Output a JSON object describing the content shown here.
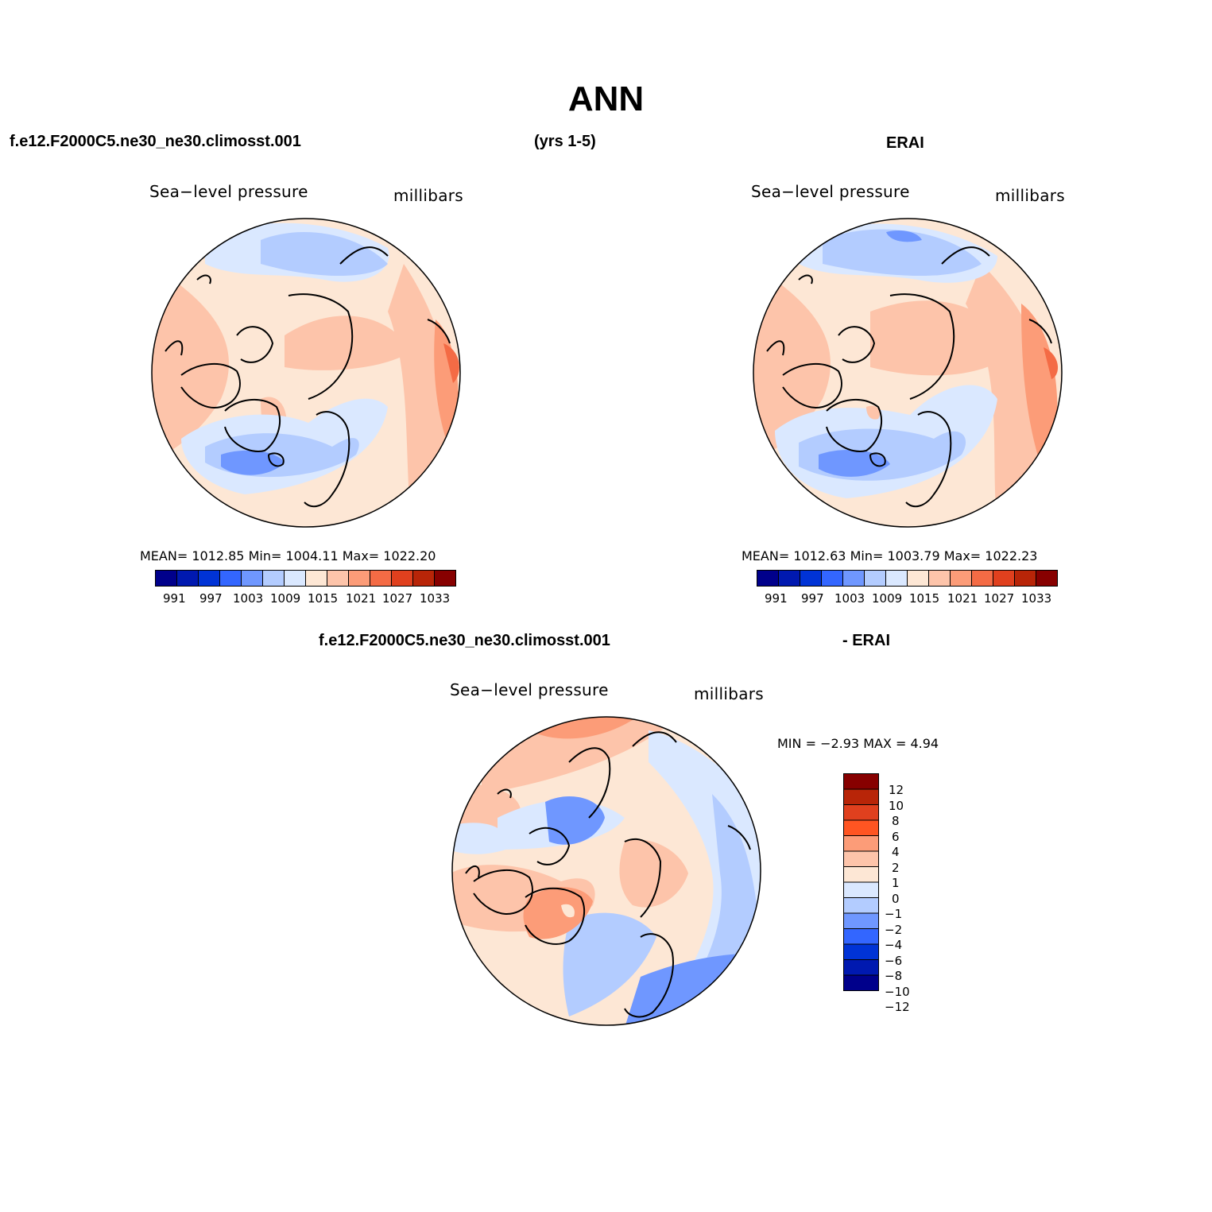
{
  "main_title": "ANN",
  "top_left_panel": {
    "case_name": "f.e12.F2000C5.ne30_ne30.climosst.001",
    "period": "(yrs 1-5)",
    "plot_title": "Sea−level pressure",
    "units": "millibars",
    "stats": "MEAN=  1012.85   Min=  1004.11   Max=  1022.20",
    "colorbar_labels": [
      "991",
      "997",
      "1003",
      "1009",
      "1015",
      "1021",
      "1027",
      "1033"
    ]
  },
  "top_right_panel": {
    "case_name": "ERAI",
    "plot_title": "Sea−level pressure",
    "units": "millibars",
    "stats": "MEAN=  1012.63   Min=  1003.79   Max=  1022.23",
    "colorbar_labels": [
      "991",
      "997",
      "1003",
      "1009",
      "1015",
      "1021",
      "1027",
      "1033"
    ]
  },
  "diff_panel": {
    "case_name": "f.e12.F2000C5.ne30_ne30.climosst.001",
    "minus_label": "- ERAI",
    "plot_title": "Sea−level pressure",
    "units": "millibars",
    "stats": "MIN =   −2.93  MAX =     4.94",
    "colorbar_labels": [
      "12",
      "10",
      "8",
      "6",
      "4",
      "2",
      "1",
      "0",
      "−1",
      "−2",
      "−4",
      "−6",
      "−8",
      "−10",
      "−12"
    ]
  },
  "colors": {
    "abs_scale": [
      "#00008b",
      "#0019b0",
      "#0033d6",
      "#3366ff",
      "#6f97ff",
      "#b3ccff",
      "#dae8ff",
      "#fde7d5",
      "#fdc4aa",
      "#fc9c78",
      "#f46b45",
      "#e0401e",
      "#b82508",
      "#870000"
    ],
    "diff_scale": [
      "#870000",
      "#b82508",
      "#e0401e",
      "#ff5522",
      "#fc9c78",
      "#fdc4aa",
      "#fde7d5",
      "#dae8ff",
      "#b3ccff",
      "#6f97ff",
      "#3366ff",
      "#0033d6",
      "#0019b0",
      "#00008b"
    ],
    "land_outline": "#000000"
  }
}
